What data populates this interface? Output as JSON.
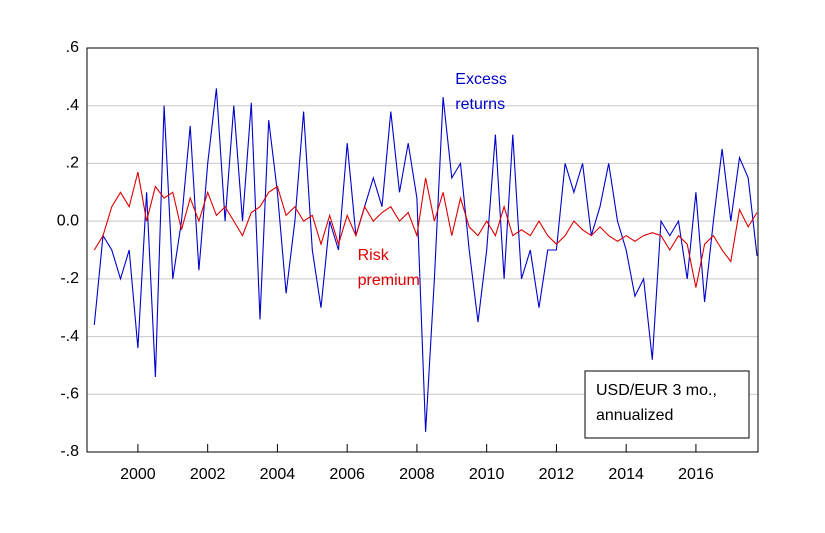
{
  "chart_data": {
    "type": "line",
    "x": [
      1998.75,
      1999,
      1999.25,
      1999.5,
      1999.75,
      2000,
      2000.25,
      2000.5,
      2000.75,
      2001,
      2001.25,
      2001.5,
      2001.75,
      2002,
      2002.25,
      2002.5,
      2002.75,
      2003,
      2003.25,
      2003.5,
      2003.75,
      2004,
      2004.25,
      2004.5,
      2004.75,
      2005,
      2005.25,
      2005.5,
      2005.75,
      2006,
      2006.25,
      2006.5,
      2006.75,
      2007,
      2007.25,
      2007.5,
      2007.75,
      2008,
      2008.25,
      2008.5,
      2008.75,
      2009,
      2009.25,
      2009.5,
      2009.75,
      2010,
      2010.25,
      2010.5,
      2010.75,
      2011,
      2011.25,
      2011.5,
      2011.75,
      2012,
      2012.25,
      2012.5,
      2012.75,
      2013,
      2013.25,
      2013.5,
      2013.75,
      2014,
      2014.25,
      2014.5,
      2014.75,
      2015,
      2015.25,
      2015.5,
      2015.75,
      2016,
      2016.25,
      2016.5,
      2016.75,
      2017,
      2017.25,
      2017.5,
      2017.75
    ],
    "series": [
      {
        "name": "Excess returns",
        "color": "#0000cc",
        "values": [
          -0.36,
          -0.05,
          -0.1,
          -0.2,
          -0.1,
          -0.44,
          0.1,
          -0.54,
          0.4,
          -0.2,
          0.0,
          0.33,
          -0.17,
          0.2,
          0.46,
          0.0,
          0.4,
          0.0,
          0.41,
          -0.34,
          0.35,
          0.1,
          -0.25,
          0.0,
          0.38,
          -0.1,
          -0.3,
          0.0,
          -0.1,
          0.27,
          -0.05,
          0.05,
          0.15,
          0.05,
          0.38,
          0.1,
          0.27,
          0.08,
          -0.73,
          -0.2,
          0.43,
          0.15,
          0.2,
          -0.1,
          -0.35,
          -0.1,
          0.3,
          -0.2,
          0.3,
          -0.2,
          -0.1,
          -0.3,
          -0.1,
          -0.1,
          0.2,
          0.1,
          0.2,
          -0.05,
          0.05,
          0.2,
          0.0,
          -0.1,
          -0.26,
          -0.2,
          -0.48,
          0.0,
          -0.05,
          0.0,
          -0.2,
          0.1,
          -0.28,
          0.0,
          0.25,
          0.0,
          0.22,
          0.15,
          -0.12
        ]
      },
      {
        "name": "Risk premium",
        "color": "#dd0000",
        "values": [
          -0.1,
          -0.05,
          0.05,
          0.1,
          0.05,
          0.17,
          0.0,
          0.12,
          0.08,
          0.1,
          -0.03,
          0.08,
          0.0,
          0.1,
          0.02,
          0.05,
          0.0,
          -0.05,
          0.03,
          0.05,
          0.1,
          0.12,
          0.02,
          0.05,
          0.0,
          0.02,
          -0.08,
          0.02,
          -0.08,
          0.02,
          -0.05,
          0.05,
          0.0,
          0.03,
          0.05,
          0.0,
          0.03,
          -0.05,
          0.15,
          0.0,
          0.1,
          -0.05,
          0.08,
          -0.02,
          -0.05,
          0.0,
          -0.05,
          0.05,
          -0.05,
          -0.03,
          -0.05,
          0.0,
          -0.05,
          -0.08,
          -0.05,
          0.0,
          -0.03,
          -0.05,
          -0.02,
          -0.05,
          -0.07,
          -0.05,
          -0.07,
          -0.05,
          -0.04,
          -0.05,
          -0.1,
          -0.05,
          -0.08,
          -0.23,
          -0.08,
          -0.05,
          -0.1,
          -0.14,
          0.04,
          -0.02,
          0.03
        ]
      }
    ],
    "xlim": [
      1998.54,
      2017.78
    ],
    "xticks": [
      2000,
      2002,
      2004,
      2006,
      2008,
      2010,
      2012,
      2014,
      2016
    ],
    "ylim": [
      -0.8,
      0.6
    ],
    "yticks": [
      {
        "value": -0.8,
        "label": "-.8"
      },
      {
        "value": -0.6,
        "label": "-.6"
      },
      {
        "value": -0.4,
        "label": "-.4"
      },
      {
        "value": -0.2,
        "label": "-.2"
      },
      {
        "value": 0,
        "label": "0.0"
      },
      {
        "value": 0.2,
        "label": ".2"
      },
      {
        "value": 0.4,
        "label": ".4"
      },
      {
        "value": 0.6,
        "label": ".6"
      }
    ],
    "grid": true,
    "annotations": [
      {
        "lines": [
          "Excess",
          "returns"
        ],
        "x": 2009.1,
        "y": 0.49,
        "color": "#0000cc"
      },
      {
        "lines": [
          "Risk",
          "premium"
        ],
        "x": 2006.3,
        "y": -0.12,
        "color": "#dd0000"
      }
    ],
    "note_box": [
      "USD/EUR 3 mo.,",
      "annualized"
    ]
  }
}
